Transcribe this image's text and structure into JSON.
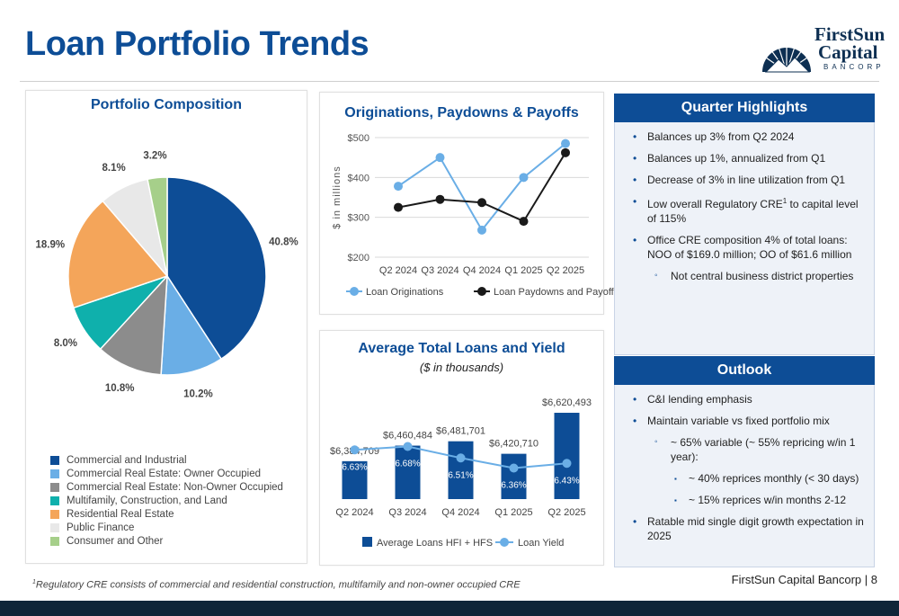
{
  "page": {
    "title": "Loan Portfolio Trends",
    "footer": "FirstSun Capital Bancorp  |  8",
    "footnote_mark": "1",
    "footnote": "Regulatory CRE consists of commercial and residential construction, multifamily and non-owner occupied CRE"
  },
  "logo": {
    "line1": "FirstSun",
    "line2": "Capital",
    "line3": "BANCORP"
  },
  "highlights": {
    "header": "Quarter Highlights",
    "items": [
      {
        "level": 1,
        "text": "Balances up 3% from Q2 2024"
      },
      {
        "level": 1,
        "text": "Balances up 1%, annualized from Q1"
      },
      {
        "level": 1,
        "text": "Decrease of 3% in line utilization from Q1"
      },
      {
        "level": 1,
        "text": "Low overall Regulatory CRE",
        "sup": "1",
        "text2": " to capital level of 115%"
      },
      {
        "level": 1,
        "text": "Office CRE composition 4% of total loans: NOO of $169.0 million; OO of $61.6 million"
      },
      {
        "level": 2,
        "text": "Not central business district properties"
      }
    ]
  },
  "outlook": {
    "header": "Outlook",
    "items": [
      {
        "level": 1,
        "text": "C&I lending emphasis"
      },
      {
        "level": 1,
        "text": "Maintain variable vs fixed portfolio mix"
      },
      {
        "level": 2,
        "text": "~ 65% variable (~ 55% repricing w/in 1 year):"
      },
      {
        "level": 3,
        "text": "~ 40% reprices monthly (< 30 days)"
      },
      {
        "level": 3,
        "text": "~ 15% reprices w/in months 2-12"
      },
      {
        "level": 1,
        "text": "Ratable mid single digit growth expectation in 2025"
      }
    ]
  },
  "chart_data": [
    {
      "type": "pie",
      "title": "Portfolio Composition",
      "legend_position": "bottom",
      "slices": [
        {
          "label": "Commercial and Industrial",
          "value": 40.8,
          "display": "40.8%",
          "color": "#0d4d96"
        },
        {
          "label": "Commercial Real Estate: Owner Occupied",
          "value": 10.2,
          "display": "10.2%",
          "color": "#6aaee6"
        },
        {
          "label": "Commercial Real Estate: Non-Owner Occupied",
          "value": 10.8,
          "display": "10.8%",
          "color": "#8c8c8c"
        },
        {
          "label": "Multifamily, Construction, and Land",
          "value": 8.0,
          "display": "8.0%",
          "color": "#0fb0ac"
        },
        {
          "label": "Residential Real Estate",
          "value": 18.9,
          "display": "18.9%",
          "color": "#f4a55a"
        },
        {
          "label": "Public Finance",
          "value": 8.1,
          "display": "8.1%",
          "color": "#e8e8e8"
        },
        {
          "label": "Consumer and Other",
          "value": 3.2,
          "display": "3.2%",
          "color": "#a6cf8a"
        }
      ]
    },
    {
      "type": "line",
      "title": "Originations, Paydowns & Payoffs",
      "ylabel": "$ in millions",
      "categories": [
        "Q2 2024",
        "Q3 2024",
        "Q4 2024",
        "Q1 2025",
        "Q2 2025"
      ],
      "ylim": [
        200,
        500
      ],
      "yticks": [
        200,
        300,
        400,
        500
      ],
      "ytick_labels": [
        "$200",
        "$300",
        "$400",
        "$500"
      ],
      "grid": true,
      "legend_position": "bottom",
      "series": [
        {
          "name": "Loan Originations",
          "values": [
            378,
            450,
            268,
            400,
            485
          ],
          "color": "#6aaee6"
        },
        {
          "name": "Loan Paydowns and Payoffs",
          "values": [
            325,
            345,
            337,
            290,
            462
          ],
          "color": "#1a1a1a"
        }
      ]
    },
    {
      "type": "bar",
      "title": "Average Total Loans and Yield",
      "subtitle": "($ in thousands)",
      "categories": [
        "Q2 2024",
        "Q3 2024",
        "Q4 2024",
        "Q1 2025",
        "Q2 2025"
      ],
      "legend_position": "bottom",
      "bar_range": [
        6200000,
        6660000
      ],
      "yield_range": [
        5.9,
        7.3
      ],
      "series": [
        {
          "name": "Average Loans HFI + HFS",
          "values": [
            6384709,
            6460484,
            6481701,
            6420710,
            6620493
          ],
          "labels": [
            "$6,384,709",
            "$6,460,484",
            "$6,481,701",
            "$6,420,710",
            "$6,620,493"
          ],
          "color": "#0d4d96"
        },
        {
          "name": "Loan Yield",
          "values": [
            6.63,
            6.68,
            6.51,
            6.36,
            6.43
          ],
          "labels": [
            "6.63%",
            "6.68%",
            "6.51%",
            "6.36%",
            "6.43%"
          ],
          "color": "#6aaee6"
        }
      ]
    }
  ]
}
